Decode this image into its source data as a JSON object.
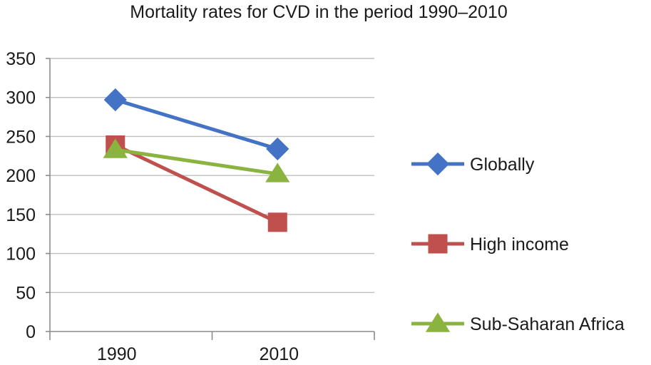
{
  "chart_data": {
    "type": "line",
    "title": "Mortality rates for CVD in the period 1990–2010",
    "xlabel": "",
    "ylabel": "",
    "categories": [
      "1990",
      "2010"
    ],
    "ylim": [
      0,
      350
    ],
    "yticks": [
      "0",
      "50",
      "100",
      "150",
      "200",
      "250",
      "300",
      "350"
    ],
    "grid": true,
    "legend_position": "right",
    "series": [
      {
        "name": "Globally",
        "values": [
          297,
          234
        ],
        "color": "#4472c4",
        "marker": "diamond"
      },
      {
        "name": "High income",
        "values": [
          239,
          140
        ],
        "color": "#c0504d",
        "marker": "square"
      },
      {
        "name": "Sub-Saharan Africa",
        "values": [
          233,
          202
        ],
        "color": "#8ab33f",
        "marker": "triangle"
      }
    ]
  }
}
